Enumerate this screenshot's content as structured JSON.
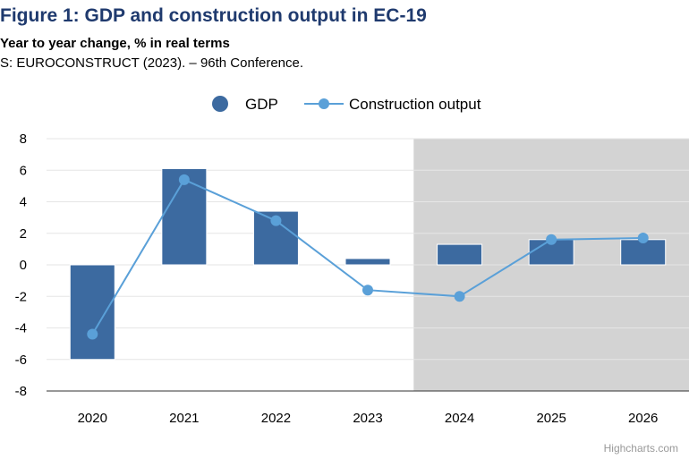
{
  "title": "Figure 1: GDP and construction output in EC-19",
  "subtitle": "Year to year change, % in real terms",
  "source": "S: EUROCONSTRUCT (2023). – 96th Conference.",
  "credits": "Highcharts.com",
  "colors": {
    "gdp": "#3c6aa0",
    "construction": "#5aa0d8",
    "forecast_band": "#d3d3d3",
    "title": "#1f3a6e"
  },
  "chart_data": {
    "type": "bar",
    "categories": [
      "2020",
      "2021",
      "2022",
      "2023",
      "2024",
      "2025",
      "2026"
    ],
    "series": [
      {
        "name": "GDP",
        "type": "bar",
        "values": [
          -6.0,
          6.1,
          3.4,
          0.4,
          1.3,
          1.6,
          1.6
        ]
      },
      {
        "name": "Construction output",
        "type": "line",
        "values": [
          -4.4,
          5.4,
          2.8,
          -1.6,
          -2.0,
          1.6,
          1.7
        ]
      }
    ],
    "ylim": [
      -8,
      8
    ],
    "yticks": [
      -8,
      -6,
      -4,
      -2,
      0,
      2,
      4,
      6,
      8
    ],
    "grid": true,
    "legend": "top-center",
    "shaded_from_category": "2024",
    "xlabel": "",
    "ylabel": ""
  }
}
